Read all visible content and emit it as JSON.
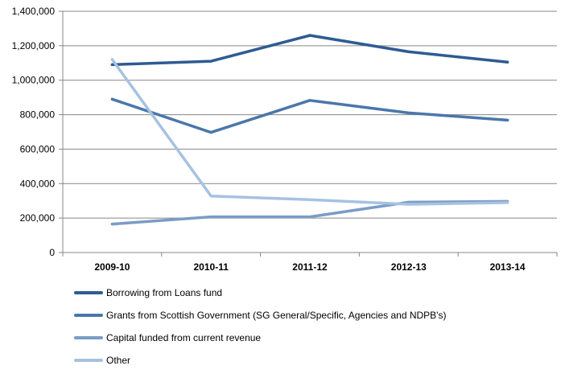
{
  "chart_data": {
    "type": "line",
    "categories": [
      "2009-10",
      "2010-11",
      "2011-12",
      "2012-13",
      "2013-14"
    ],
    "ylim": [
      0,
      1400000
    ],
    "yticks": [
      0,
      200000,
      400000,
      600000,
      800000,
      1000000,
      1200000,
      1400000
    ],
    "ytick_labels": [
      "0",
      "200,000",
      "400,000",
      "600,000",
      "800,000",
      "1,000,000",
      "1,200,000",
      "1,400,000"
    ],
    "grid": "horizontal",
    "legend_position": "bottom",
    "series": [
      {
        "name": "Borrowing from Loans fund",
        "color": "#2e5b92",
        "values": [
          1090000,
          1110000,
          1260000,
          1165000,
          1105000
        ]
      },
      {
        "name": "Grants from Scottish Government (SG General/Specific, Agencies and NDPB's)",
        "color": "#4a77aa",
        "values": [
          890000,
          697000,
          883000,
          810000,
          768000
        ]
      },
      {
        "name": "Capital funded from current revenue",
        "color": "#7a9cc6",
        "values": [
          165000,
          207000,
          207000,
          292000,
          297000
        ]
      },
      {
        "name": "Other",
        "color": "#a6c2e0",
        "values": [
          1120000,
          328000,
          307000,
          280000,
          290000
        ]
      }
    ]
  }
}
